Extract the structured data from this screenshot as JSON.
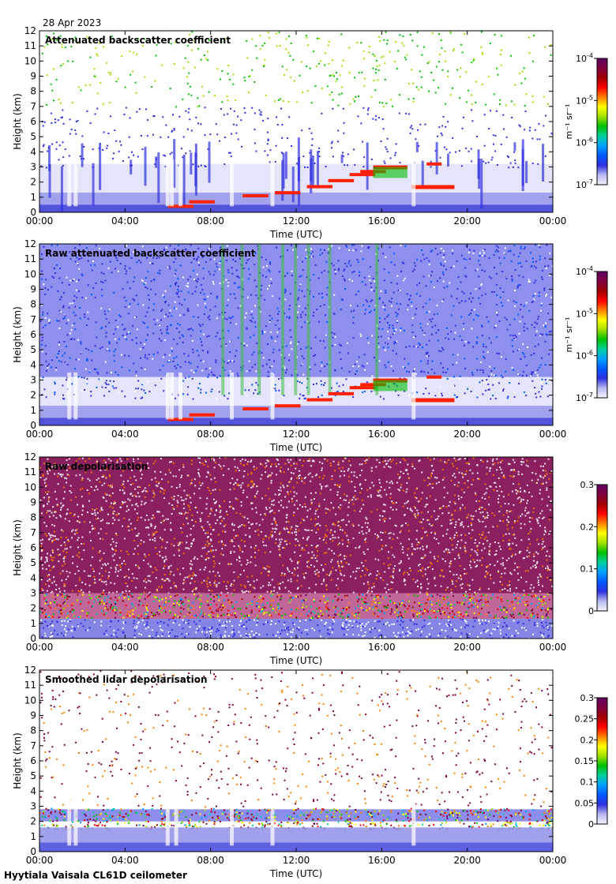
{
  "date": "28 Apr 2023",
  "footer": "Hyytiala Vaisala CL61D ceilometer",
  "colors": {
    "bg_background": "#ffffff",
    "cb_stops": [
      "#f4f4ff",
      "#b8b8f0",
      "#3030e0",
      "#0058ff",
      "#00a0ff",
      "#00d0a0",
      "#00c000",
      "#a0e000",
      "#ffff00",
      "#ff8000",
      "#ff0000",
      "#a00000",
      "#800040",
      "#600060"
    ]
  },
  "chart_data": [
    {
      "type": "heatmap",
      "title": "Attenuated backscatter coefficient",
      "xlabel": "Time (UTC)",
      "ylabel": "Height (km)",
      "xticks": [
        "00:00",
        "04:00",
        "08:00",
        "12:00",
        "16:00",
        "20:00",
        "00:00"
      ],
      "xlim": [
        0,
        24
      ],
      "yticks": [
        "0",
        "1",
        "2",
        "3",
        "4",
        "5",
        "6",
        "7",
        "8",
        "9",
        "10",
        "11",
        "12"
      ],
      "ylim": [
        0,
        12
      ],
      "colorbar": {
        "scale": "log",
        "ticks": [
          "10",
          "10",
          "10",
          "10"
        ],
        "tick_exps": [
          "-4",
          "-5",
          "-6",
          "-7"
        ],
        "units": "m⁻¹ sr⁻¹"
      },
      "style": "filtered"
    },
    {
      "type": "heatmap",
      "title": "Raw attenuated backscatter coefficient",
      "xlabel": "Time (UTC)",
      "ylabel": "Height (km)",
      "xticks": [
        "00:00",
        "04:00",
        "08:00",
        "12:00",
        "16:00",
        "20:00",
        "00:00"
      ],
      "xlim": [
        0,
        24
      ],
      "yticks": [
        "0",
        "1",
        "2",
        "3",
        "4",
        "5",
        "6",
        "7",
        "8",
        "9",
        "10",
        "11",
        "12"
      ],
      "ylim": [
        0,
        12
      ],
      "colorbar": {
        "scale": "log",
        "ticks": [
          "10",
          "10",
          "10",
          "10"
        ],
        "tick_exps": [
          "-4",
          "-5",
          "-6",
          "-7"
        ],
        "units": "m⁻¹ sr⁻¹"
      },
      "style": "raw"
    },
    {
      "type": "heatmap",
      "title": "Raw depolarisation",
      "xlabel": "Time (UTC)",
      "ylabel": "Height (km)",
      "xticks": [
        "00:00",
        "04:00",
        "08:00",
        "12:00",
        "16:00",
        "20:00",
        "00:00"
      ],
      "xlim": [
        0,
        24
      ],
      "yticks": [
        "0",
        "1",
        "2",
        "3",
        "4",
        "5",
        "6",
        "7",
        "8",
        "9",
        "10",
        "11",
        "12"
      ],
      "ylim": [
        0,
        12
      ],
      "colorbar": {
        "scale": "linear",
        "ticks": [
          "0.3",
          "0.2",
          "0.1",
          "0"
        ],
        "range": [
          0,
          0.3
        ]
      },
      "style": "rawdepol"
    },
    {
      "type": "heatmap",
      "title": "Smoothed lidar depolarisation",
      "xlabel": "Time (UTC)",
      "ylabel": "Height (km)",
      "xticks": [
        "00:00",
        "04:00",
        "08:00",
        "12:00",
        "16:00",
        "20:00",
        "00:00"
      ],
      "xlim": [
        0,
        24
      ],
      "yticks": [
        "0",
        "1",
        "2",
        "3",
        "4",
        "5",
        "6",
        "7",
        "8",
        "9",
        "10",
        "11",
        "12"
      ],
      "ylim": [
        0,
        12
      ],
      "colorbar": {
        "scale": "linear",
        "ticks": [
          "0.3",
          "0.25",
          "0.2",
          "0.15",
          "0.1",
          "0.05",
          "0"
        ],
        "range": [
          0,
          0.3
        ]
      },
      "style": "smoothdepol"
    }
  ]
}
